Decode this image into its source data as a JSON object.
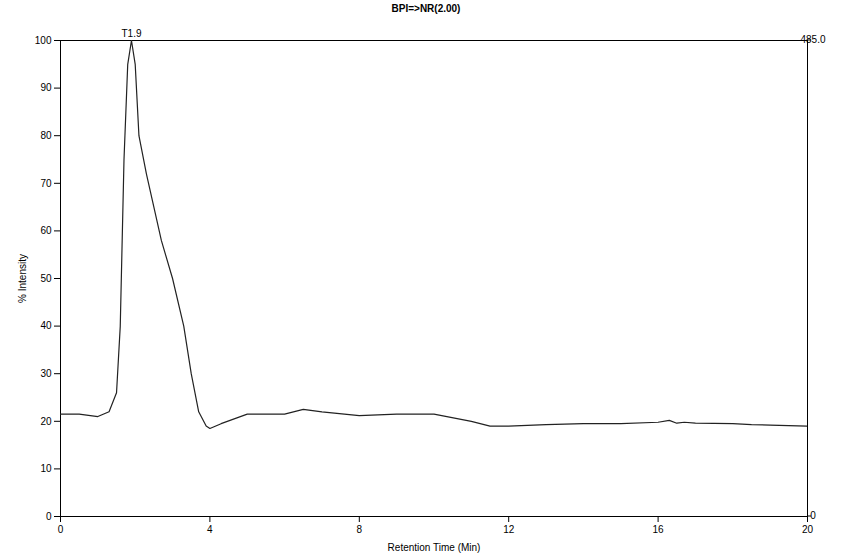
{
  "chart_data": {
    "type": "line",
    "title": "BPI=>NR(2.00)",
    "x_label": "Retention Time (Min)",
    "y_label": "% Intensity",
    "x": [
      0,
      0.5,
      1.0,
      1.3,
      1.5,
      1.6,
      1.7,
      1.8,
      1.9,
      2.0,
      2.1,
      2.3,
      2.5,
      2.7,
      3.0,
      3.3,
      3.5,
      3.7,
      3.9,
      4.0,
      4.3,
      5,
      6,
      6.5,
      7,
      8,
      9,
      10,
      11,
      11.5,
      12,
      13,
      14,
      15,
      16,
      16.3,
      16.5,
      16.7,
      17,
      18,
      18.5,
      19,
      20
    ],
    "values": [
      21.5,
      21.5,
      21,
      22,
      26,
      40,
      75,
      95,
      100,
      95,
      80,
      72,
      65,
      58,
      50,
      40,
      30,
      22,
      19,
      18.5,
      19.5,
      21.5,
      21.5,
      22.5,
      22,
      21.2,
      21.5,
      21.5,
      20,
      19,
      19,
      19.3,
      19.5,
      19.5,
      19.8,
      20.2,
      19.6,
      19.8,
      19.6,
      19.5,
      19.3,
      19.2,
      19
    ],
    "color": "#222222",
    "xlim": [
      0,
      20
    ],
    "xticks": [
      0,
      4,
      8,
      12,
      16,
      20
    ],
    "ylim": [
      0,
      100
    ],
    "yticks": [
      0,
      10,
      20,
      30,
      40,
      50,
      60,
      70,
      80,
      90,
      100
    ],
    "y2lim": [
      0,
      485
    ],
    "y2ticks": [
      0,
      {
        "value": 485,
        "label": "485.0"
      }
    ],
    "annotations": [
      {
        "text": "T1.9",
        "x": 1.9,
        "y": 100
      }
    ],
    "grid": false
  }
}
